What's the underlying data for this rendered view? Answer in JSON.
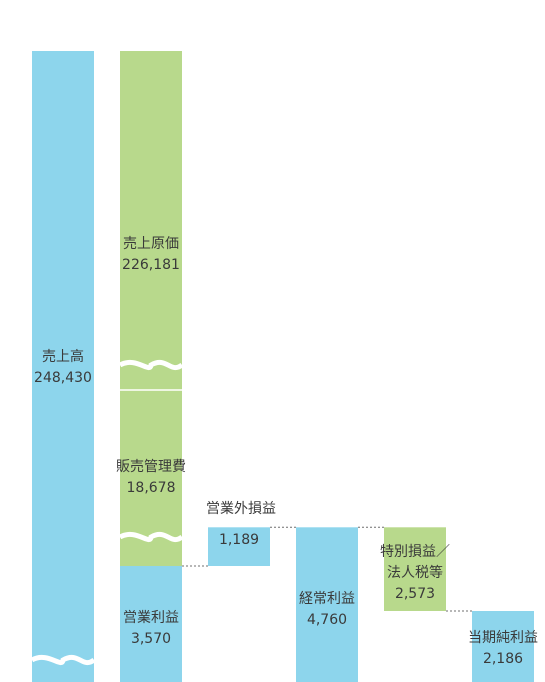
{
  "chart_data": {
    "type": "bar",
    "subtype": "waterfall",
    "unit": "",
    "colors": {
      "positive": "#8dd5ec",
      "deduction": "#b8d98c",
      "connector": "#6f6f6f"
    },
    "items": [
      {
        "key": "sales",
        "name": "売上高",
        "value_label": "248,430",
        "value": 248430,
        "kind": "total",
        "broken": true
      },
      {
        "key": "cogs",
        "name": "売上原価",
        "value_label": "226,181",
        "value": 226181,
        "kind": "deduction",
        "broken": true
      },
      {
        "key": "sga",
        "name": "販売管理費",
        "value_label": "18,678",
        "value": 18678,
        "kind": "deduction",
        "broken": true
      },
      {
        "key": "op_income",
        "name": "営業利益",
        "value_label": "3,570",
        "value": 3570,
        "kind": "subtotal"
      },
      {
        "key": "non_op",
        "name": "営業外損益",
        "value_label": "1,189",
        "value": 1189,
        "kind": "increase"
      },
      {
        "key": "ordinary",
        "name": "経常利益",
        "value_label": "4,760",
        "value": 4760,
        "kind": "subtotal"
      },
      {
        "key": "special",
        "name": "特別損益／法人税等",
        "name_lines": [
          "特別損益／",
          "法人税等"
        ],
        "value_label": "2,573",
        "value": 2573,
        "kind": "deduction"
      },
      {
        "key": "net",
        "name": "当期純利益",
        "value_label": "2,186",
        "value": 2186,
        "kind": "total"
      }
    ]
  }
}
